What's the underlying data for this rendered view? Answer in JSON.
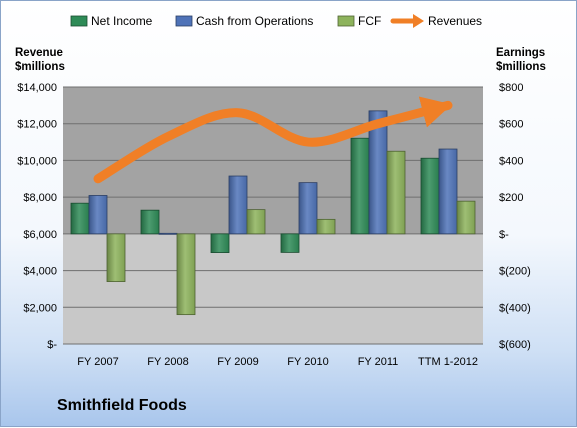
{
  "chart_data": {
    "type": "bar",
    "title": "Smithfield Foods",
    "categories": [
      "FY 2007",
      "FY 2008",
      "FY 2009",
      "FY 2010",
      "FY 2011",
      "TTM 1-2012"
    ],
    "series": [
      {
        "name": "Net Income",
        "axis": "right",
        "values": [
          167,
          129,
          -102,
          -101,
          521,
          412
        ],
        "color": "#2e8b57"
      },
      {
        "name": "Cash from Operations",
        "axis": "right",
        "values": [
          209,
          3,
          315,
          279,
          670,
          462
        ],
        "color": "#4f73b8"
      },
      {
        "name": "FCF",
        "axis": "right",
        "values": [
          -260,
          -440,
          132,
          79,
          450,
          178
        ],
        "color": "#8db35c"
      }
    ],
    "line_series": {
      "name": "Revenues",
      "axis": "left",
      "values": [
        9000,
        11300,
        12600,
        11000,
        12000,
        13000
      ],
      "color": "#f07f26"
    },
    "left_axis": {
      "label": [
        "Revenue",
        "$millions"
      ],
      "ylim": [
        0,
        14000
      ],
      "ticks": [
        0,
        2000,
        4000,
        6000,
        8000,
        10000,
        12000,
        14000
      ],
      "tick_labels": [
        "$-",
        "$2,000",
        "$4,000",
        "$6,000",
        "$8,000",
        "$10,000",
        "$12,000",
        "$14,000"
      ]
    },
    "right_axis": {
      "label": [
        "Earnings",
        "$millions"
      ],
      "ylim": [
        -600,
        800
      ],
      "ticks": [
        -600,
        -400,
        -200,
        0,
        200,
        400,
        600,
        800
      ],
      "tick_labels": [
        "$(600)",
        "$(400)",
        "$(200)",
        "$-",
        "$200",
        "$400",
        "$600",
        "$800"
      ]
    },
    "legend": {
      "position": "top",
      "entries": [
        "Net Income",
        "Cash from Operations",
        "FCF",
        "Revenues"
      ]
    },
    "grid": true,
    "plot_colors": {
      "positive_region": "#a3a3a3",
      "negative_region": "#c8c8c8",
      "gridline": "#6f6f6f"
    }
  }
}
